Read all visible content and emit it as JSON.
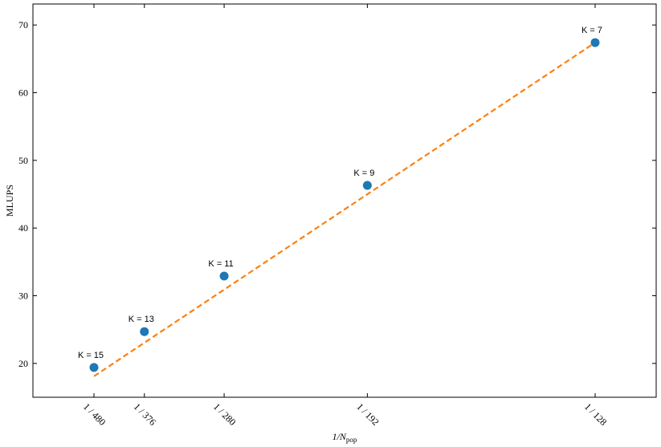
{
  "chart_data": {
    "type": "scatter",
    "xlabel": "1/N",
    "xlabel_subscript": "pop",
    "ylabel": "MLUPS",
    "xlim": [
      0.0013855,
      0.0085103
    ],
    "ylim": [
      15.0,
      73.1
    ],
    "xticks": [
      {
        "value": 0.0020833,
        "label": "1 / 480"
      },
      {
        "value": 0.0026596,
        "label": "1 / 376"
      },
      {
        "value": 0.0035714,
        "label": "1 / 280"
      },
      {
        "value": 0.0052083,
        "label": "1 / 192"
      },
      {
        "value": 0.0078125,
        "label": "1 / 128"
      }
    ],
    "yticks": [
      20,
      30,
      40,
      50,
      60,
      70
    ],
    "series": [
      {
        "type": "scatter",
        "color": "#1f77b4",
        "x": [
          0.0020833,
          0.0026596,
          0.0035714,
          0.0052083,
          0.0078125
        ],
        "values": [
          19.4,
          24.7,
          32.9,
          46.3,
          67.4
        ],
        "point_labels": [
          "K = 15",
          "K = 13",
          "K = 11",
          "K = 9",
          "K = 7"
        ]
      },
      {
        "type": "line",
        "color": "#ff7f0e",
        "dashed": true,
        "x": [
          0.0020833,
          0.0078125
        ],
        "values": [
          18.1,
          67.4
        ]
      }
    ]
  }
}
